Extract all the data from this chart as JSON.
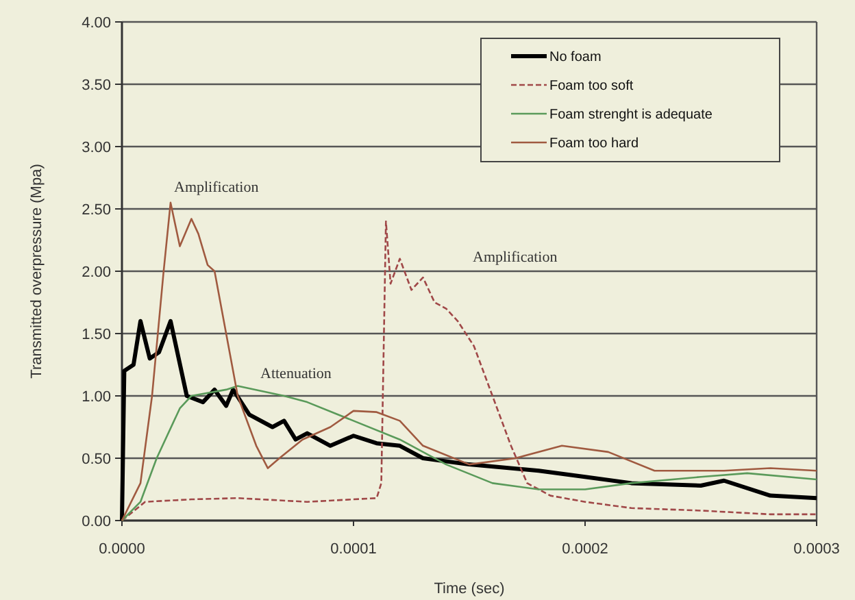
{
  "chart_data": {
    "type": "line",
    "xlabel": "Time (sec)",
    "ylabel": "Transmitted overpressure (Mpa)",
    "xlim": [
      0,
      0.0003
    ],
    "ylim": [
      0,
      4
    ],
    "xticks": [
      {
        "value": 0,
        "label": "0.0000"
      },
      {
        "value": 0.0001,
        "label": "0.0001"
      },
      {
        "value": 0.0002,
        "label": "0.0002"
      },
      {
        "value": 0.0003,
        "label": "0.0003"
      }
    ],
    "yticks": [
      {
        "value": 0,
        "label": "0.00"
      },
      {
        "value": 0.5,
        "label": "0.50"
      },
      {
        "value": 1,
        "label": "1.00"
      },
      {
        "value": 1.5,
        "label": "1.50"
      },
      {
        "value": 2,
        "label": "2.00"
      },
      {
        "value": 2.5,
        "label": "2.50"
      },
      {
        "value": 3,
        "label": "3.00"
      },
      {
        "value": 3.5,
        "label": "3.50"
      },
      {
        "value": 4,
        "label": "4.00"
      }
    ],
    "grid": "y",
    "legend": "top right",
    "annotations": [
      "Amplification",
      "Attenuation",
      "Amplification"
    ],
    "series": [
      {
        "name": "No foam",
        "color": "#000000",
        "line_style": "solid",
        "x": [
          0,
          1e-06,
          5e-06,
          8e-06,
          1.2e-05,
          1.6e-05,
          2.1e-05,
          2.8e-05,
          3.5e-05,
          4e-05,
          4.5e-05,
          4.8e-05,
          5.5e-05,
          6.5e-05,
          7e-05,
          7.5e-05,
          8e-05,
          9e-05,
          0.0001,
          0.00011,
          0.00012,
          0.00013,
          0.00015,
          0.00018,
          0.0002,
          0.00022,
          0.00025,
          0.00026,
          0.00028,
          0.0003
        ],
        "values": [
          0,
          1.2,
          1.25,
          1.6,
          1.3,
          1.35,
          1.6,
          1.0,
          0.95,
          1.05,
          0.92,
          1.05,
          0.85,
          0.75,
          0.8,
          0.65,
          0.7,
          0.6,
          0.68,
          0.62,
          0.6,
          0.5,
          0.45,
          0.4,
          0.35,
          0.3,
          0.28,
          0.32,
          0.2,
          0.18
        ]
      },
      {
        "name": "Foam too soft",
        "color": "#a04848",
        "line_style": "dashed",
        "x": [
          0,
          1e-05,
          3e-05,
          5e-05,
          8e-05,
          0.00011,
          0.000112,
          0.000114,
          0.000116,
          0.00012,
          0.000125,
          0.00013,
          0.000135,
          0.00014,
          0.000145,
          0.000152,
          0.00016,
          0.000168,
          0.000175,
          0.000185,
          0.0002,
          0.00022,
          0.00025,
          0.00028,
          0.0003
        ],
        "values": [
          0,
          0.15,
          0.17,
          0.18,
          0.15,
          0.18,
          0.3,
          2.4,
          1.9,
          2.1,
          1.85,
          1.95,
          1.75,
          1.7,
          1.6,
          1.4,
          1.0,
          0.6,
          0.3,
          0.2,
          0.15,
          0.1,
          0.08,
          0.05,
          0.05
        ]
      },
      {
        "name": "Foam strenght is adequate",
        "color": "#5a9a5a",
        "line_style": "solid",
        "x": [
          0,
          8e-06,
          1.5e-05,
          2.5e-05,
          3e-05,
          4.5e-05,
          5e-05,
          7e-05,
          8e-05,
          0.0001,
          0.00012,
          0.00014,
          0.00016,
          0.00018,
          0.0002,
          0.00022,
          0.00025,
          0.00027,
          0.0003
        ],
        "values": [
          0,
          0.15,
          0.5,
          0.9,
          1.0,
          1.05,
          1.08,
          1.0,
          0.95,
          0.8,
          0.65,
          0.45,
          0.3,
          0.25,
          0.25,
          0.3,
          0.35,
          0.38,
          0.33
        ]
      },
      {
        "name": "Foam too hard",
        "color": "#a05a40",
        "line_style": "solid",
        "x": [
          0,
          8e-06,
          1.3e-05,
          1.8e-05,
          2.1e-05,
          2.5e-05,
          3e-05,
          3.3e-05,
          3.7e-05,
          4e-05,
          4.5e-05,
          5e-05,
          5.8e-05,
          6.3e-05,
          6.8e-05,
          7.8e-05,
          9e-05,
          0.0001,
          0.00011,
          0.00012,
          0.00013,
          0.00015,
          0.00017,
          0.00019,
          0.00021,
          0.00023,
          0.00026,
          0.00028,
          0.0003
        ],
        "values": [
          0,
          0.3,
          1.0,
          2.0,
          2.55,
          2.2,
          2.42,
          2.3,
          2.05,
          2.0,
          1.5,
          1.0,
          0.6,
          0.42,
          0.5,
          0.65,
          0.75,
          0.88,
          0.87,
          0.8,
          0.6,
          0.45,
          0.5,
          0.6,
          0.55,
          0.4,
          0.4,
          0.42,
          0.4
        ]
      }
    ]
  }
}
